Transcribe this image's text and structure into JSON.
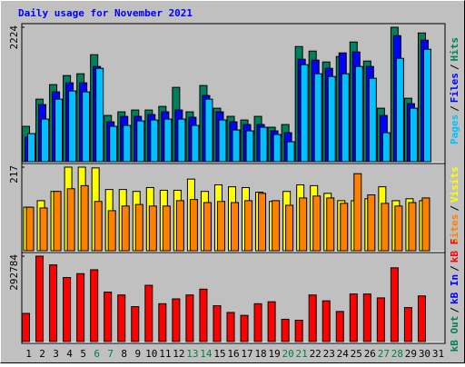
{
  "chart_data": [
    {
      "type": "bar",
      "title": "Daily usage for November 2021",
      "title_color": "#0000ff",
      "ylim": [
        0,
        2224
      ],
      "yticks": [
        2224
      ],
      "legend_separator": "/",
      "series": [
        {
          "name": "Hits",
          "color": "#00805c",
          "values": [
            585,
            1035,
            1275,
            1425,
            1455,
            1770,
            765,
            825,
            855,
            855,
            915,
            1230,
            825,
            1260,
            885,
            750,
            690,
            750,
            570,
            615,
            1905,
            1830,
            1650,
            1740,
            1980,
            1665,
            885,
            2224,
            1050,
            2130,
            0
          ]
        },
        {
          "name": "Files",
          "color": "#0000ff",
          "values": [
            405,
            945,
            1155,
            1305,
            1305,
            1575,
            660,
            750,
            750,
            780,
            825,
            855,
            735,
            1095,
            825,
            660,
            615,
            615,
            510,
            480,
            1695,
            1680,
            1545,
            1800,
            1815,
            1575,
            765,
            2085,
            960,
            2010,
            0
          ]
        },
        {
          "name": "Pages",
          "color": "#00c0ff",
          "values": [
            465,
            705,
            1035,
            1170,
            1155,
            1545,
            585,
            600,
            675,
            690,
            705,
            705,
            600,
            1035,
            690,
            525,
            510,
            570,
            450,
            330,
            1605,
            1455,
            1410,
            1455,
            1575,
            1380,
            480,
            1710,
            885,
            1860,
            0
          ]
        }
      ]
    },
    {
      "type": "bar",
      "ylim": [
        0,
        217
      ],
      "yticks": [
        217
      ],
      "legend_separator": "/",
      "series": [
        {
          "name": "Visits",
          "color": "#ffff00",
          "values": [
            113,
            130,
            154,
            217,
            217,
            215,
            159,
            159,
            154,
            164,
            157,
            157,
            186,
            154,
            171,
            166,
            164,
            152,
            128,
            154,
            171,
            169,
            149,
            130,
            130,
            135,
            166,
            130,
            135,
            130,
            0
          ]
        },
        {
          "name": "Sites",
          "color": "#ff8000",
          "values": [
            113,
            111,
            154,
            161,
            169,
            128,
            104,
            116,
            120,
            116,
            116,
            130,
            133,
            125,
            128,
            125,
            130,
            149,
            130,
            118,
            137,
            142,
            137,
            123,
            200,
            145,
            123,
            116,
            125,
            137,
            0
          ]
        }
      ]
    },
    {
      "type": "bar",
      "ylim": [
        0,
        292784
      ],
      "yticks": [
        292784
      ],
      "legend_separator": "/",
      "categories": [
        "1",
        "2",
        "3",
        "4",
        "5",
        "6",
        "7",
        "8",
        "9",
        "10",
        "11",
        "12",
        "13",
        "14",
        "15",
        "16",
        "17",
        "18",
        "19",
        "20",
        "21",
        "22",
        "23",
        "24",
        "25",
        "26",
        "27",
        "28",
        "29",
        "30",
        "31"
      ],
      "category_colors": [
        "#000000",
        "#000000",
        "#000000",
        "#000000",
        "#000000",
        "#008040",
        "#008040",
        "#000000",
        "#000000",
        "#000000",
        "#000000",
        "#000000",
        "#008040",
        "#008040",
        "#000000",
        "#000000",
        "#000000",
        "#000000",
        "#000000",
        "#008040",
        "#008040",
        "#000000",
        "#000000",
        "#000000",
        "#000000",
        "#000000",
        "#008040",
        "#008040",
        "#000000",
        "#000000",
        "#000000"
      ],
      "series": [
        {
          "name": "kB F",
          "color": "#ff0000",
          "values": [
            96483,
            292784,
            262840,
            219589,
            232897,
            246205,
            169677,
            159696,
            119772,
            192968,
            129753,
            146388,
            159696,
            179658,
            123099,
            99810,
            89829,
            129753,
            136407,
            76521,
            73194,
            159696,
            139734,
            103137,
            163023,
            163023,
            149715,
            252859,
            116445,
            156369,
            0
          ]
        },
        {
          "name": "kB In",
          "color": "#0000ff",
          "values": [
            0,
            0,
            0,
            0,
            0,
            0,
            0,
            0,
            0,
            0,
            0,
            0,
            0,
            0,
            0,
            0,
            0,
            0,
            0,
            0,
            0,
            0,
            0,
            0,
            0,
            0,
            0,
            0,
            0,
            0,
            0
          ]
        },
        {
          "name": "kB Out",
          "color": "#00805c",
          "values": [
            0,
            0,
            0,
            0,
            0,
            0,
            0,
            0,
            0,
            0,
            0,
            0,
            0,
            0,
            0,
            0,
            0,
            0,
            0,
            0,
            0,
            0,
            0,
            0,
            0,
            0,
            0,
            0,
            0,
            0,
            0
          ]
        }
      ]
    }
  ]
}
